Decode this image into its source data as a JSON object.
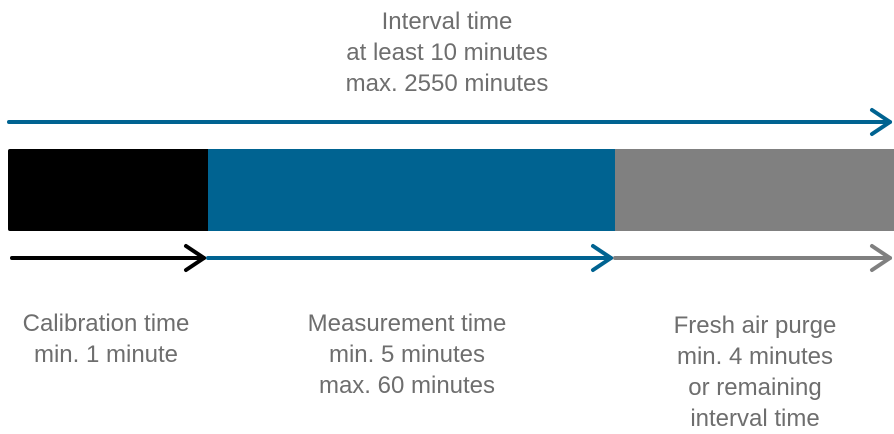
{
  "colors": {
    "calibration": "#000000",
    "measurement": "#006391",
    "purge": "#808080",
    "interval_arrow": "#006391",
    "text": "#6e6e6e"
  },
  "interval": {
    "lines": [
      "Interval time",
      "at least 10 minutes",
      "max. 2550 minutes"
    ]
  },
  "calibration": {
    "lines": [
      "Calibration time",
      "min. 1 minute"
    ]
  },
  "measurement": {
    "lines": [
      "Measurement time",
      "min. 5 minutes",
      "max. 60 minutes"
    ]
  },
  "purge": {
    "lines": [
      "Fresh air purge",
      "min. 4 minutes",
      "or remaining",
      "interval time"
    ]
  }
}
